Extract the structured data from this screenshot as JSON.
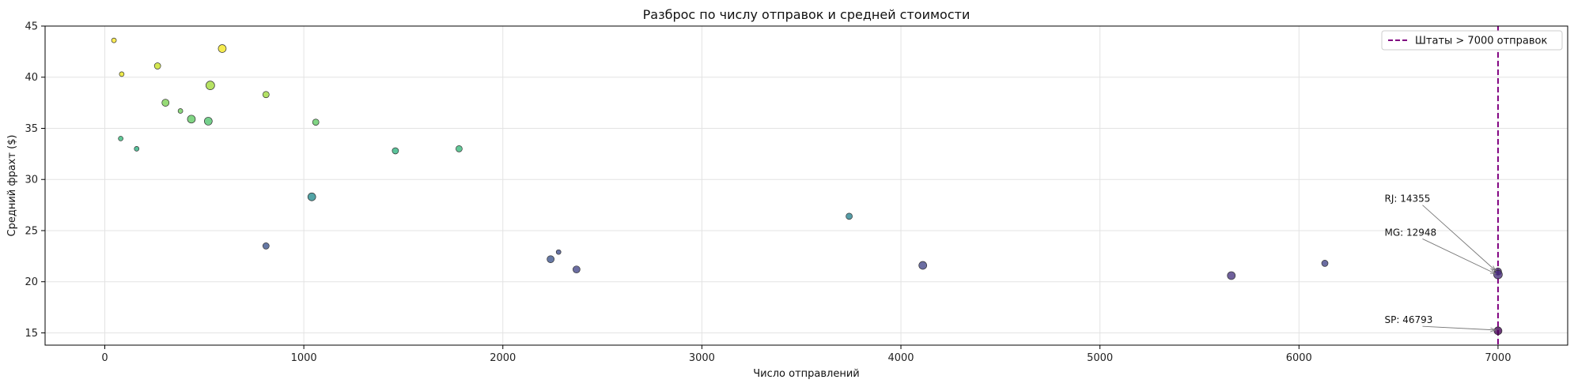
{
  "chart_data": {
    "type": "scatter",
    "title": "Разброс по числу отправок и средней стоимости",
    "xlabel": "Число отправлений",
    "ylabel": "Средний фрахт ($)",
    "xlim": [
      -300,
      7350
    ],
    "ylim": [
      13.8,
      45
    ],
    "xticks": [
      0,
      1000,
      2000,
      3000,
      4000,
      5000,
      6000,
      7000
    ],
    "yticks": [
      15,
      20,
      25,
      30,
      35,
      40,
      45
    ],
    "grid": true,
    "colormap": "viridis",
    "legend": {
      "position": "top-right",
      "entries": [
        {
          "label": "Штаты > 7000 отправок",
          "color": "#800080",
          "style": "dashed"
        }
      ]
    },
    "threshold_line": {
      "x": 7000,
      "color": "#800080"
    },
    "points": [
      {
        "x": 46,
        "y": 43.6,
        "color": "#fde725",
        "size": 3
      },
      {
        "x": 85,
        "y": 40.3,
        "color": "#e8e419",
        "size": 3
      },
      {
        "x": 590,
        "y": 42.8,
        "color": "#f2e51d",
        "size": 5
      },
      {
        "x": 265,
        "y": 41.1,
        "color": "#c8e020",
        "size": 4
      },
      {
        "x": 530,
        "y": 39.2,
        "color": "#a2da37",
        "size": 5.5
      },
      {
        "x": 810,
        "y": 38.3,
        "color": "#9dd93b",
        "size": 4
      },
      {
        "x": 305,
        "y": 37.5,
        "color": "#7ad151",
        "size": 4.5
      },
      {
        "x": 380,
        "y": 36.7,
        "color": "#6ccd5a",
        "size": 3
      },
      {
        "x": 435,
        "y": 35.9,
        "color": "#5ec962",
        "size": 5
      },
      {
        "x": 520,
        "y": 35.7,
        "color": "#4ec36b",
        "size": 5
      },
      {
        "x": 1060,
        "y": 35.6,
        "color": "#5ec962",
        "size": 4
      },
      {
        "x": 80,
        "y": 34.0,
        "color": "#35b779",
        "size": 3
      },
      {
        "x": 160,
        "y": 33.0,
        "color": "#29af7f",
        "size": 3
      },
      {
        "x": 1460,
        "y": 32.8,
        "color": "#2db27d",
        "size": 4
      },
      {
        "x": 1780,
        "y": 33.0,
        "color": "#35b779",
        "size": 4
      },
      {
        "x": 1040,
        "y": 28.3,
        "color": "#238a8d",
        "size": 5
      },
      {
        "x": 3740,
        "y": 26.4,
        "color": "#26828e",
        "size": 4
      },
      {
        "x": 810,
        "y": 23.5,
        "color": "#3b528b",
        "size": 4
      },
      {
        "x": 2280,
        "y": 22.9,
        "color": "#3e4c8a",
        "size": 3
      },
      {
        "x": 2240,
        "y": 22.2,
        "color": "#3b528b",
        "size": 4.5
      },
      {
        "x": 2370,
        "y": 21.2,
        "color": "#414487",
        "size": 4.5
      },
      {
        "x": 4110,
        "y": 21.6,
        "color": "#414487",
        "size": 5
      },
      {
        "x": 5660,
        "y": 20.6,
        "color": "#46337f",
        "size": 5
      },
      {
        "x": 6130,
        "y": 21.8,
        "color": "#414487",
        "size": 4
      },
      {
        "x": 7000,
        "y": 21.0,
        "color": "#482475",
        "size": 4.5
      },
      {
        "x": 7000,
        "y": 20.7,
        "color": "#472d7b",
        "size": 5.5
      },
      {
        "x": 7000,
        "y": 15.2,
        "color": "#440154",
        "size": 5
      }
    ],
    "annotations": [
      {
        "label": "RJ: 14355",
        "text_x": 6430,
        "text_y": 27.8,
        "target_x": 7000,
        "target_y": 21.0
      },
      {
        "label": "MG: 12948",
        "text_x": 6430,
        "text_y": 24.5,
        "target_x": 7000,
        "target_y": 20.7
      },
      {
        "label": "SP: 46793",
        "text_x": 6430,
        "text_y": 15.95,
        "target_x": 7000,
        "target_y": 15.2
      }
    ]
  }
}
